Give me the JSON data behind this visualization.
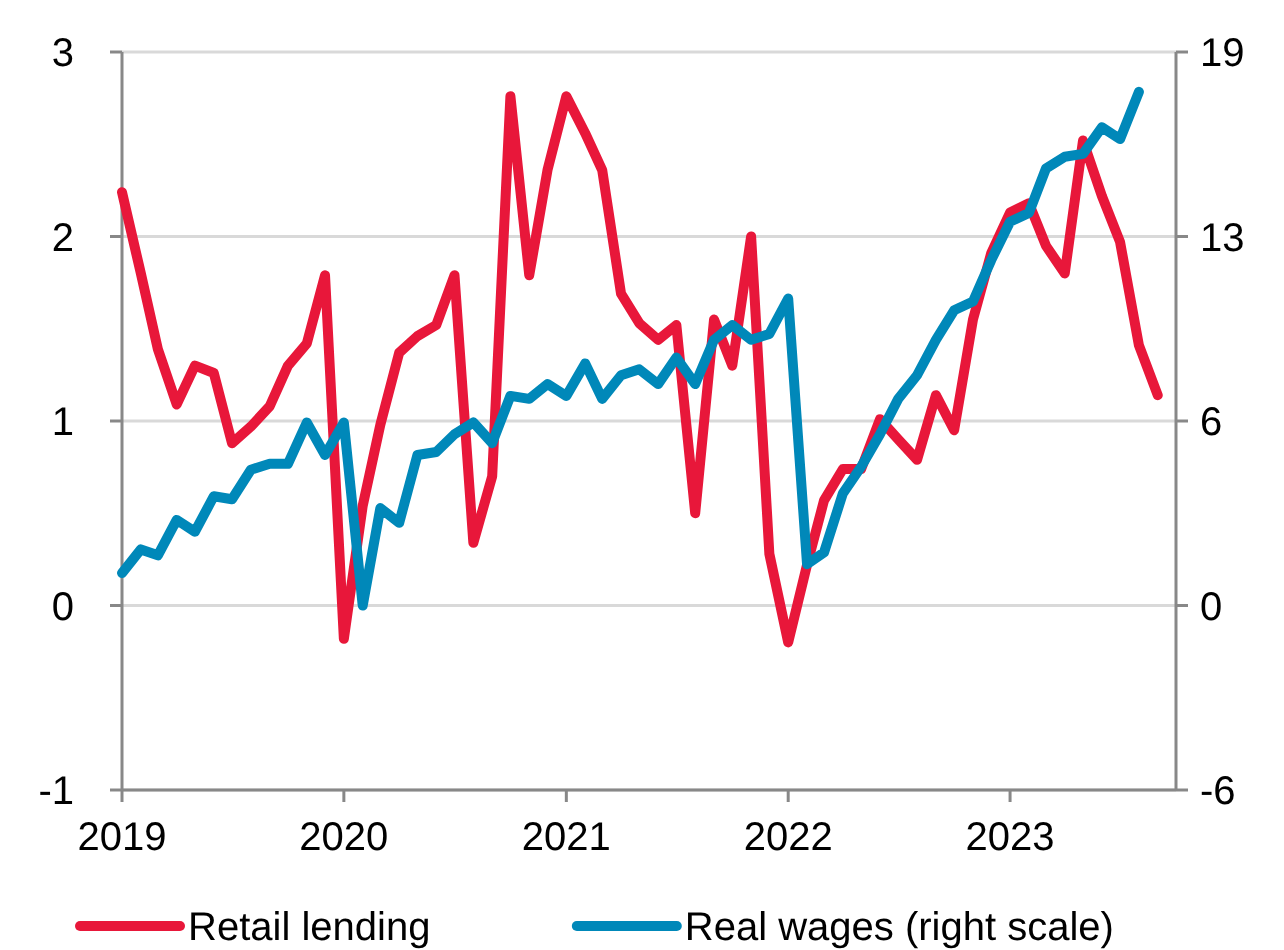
{
  "chart_data": {
    "type": "line",
    "x": [
      "2019-01",
      "2019-02",
      "2019-03",
      "2019-04",
      "2019-05",
      "2019-06",
      "2019-07",
      "2019-08",
      "2019-09",
      "2019-10",
      "2019-11",
      "2019-12",
      "2020-01",
      "2020-02",
      "2020-03",
      "2020-04",
      "2020-05",
      "2020-06",
      "2020-07",
      "2020-08",
      "2020-09",
      "2020-10",
      "2020-11",
      "2020-12",
      "2021-01",
      "2021-02",
      "2021-03",
      "2021-04",
      "2021-05",
      "2021-06",
      "2021-07",
      "2021-08",
      "2021-09",
      "2021-10",
      "2021-11",
      "2021-12",
      "2022-01",
      "2022-02",
      "2022-03",
      "2022-04",
      "2022-05",
      "2022-06",
      "2022-07",
      "2022-08",
      "2022-09",
      "2022-10",
      "2022-11",
      "2022-12",
      "2023-01",
      "2023-02",
      "2023-03",
      "2023-04",
      "2023-05",
      "2023-06",
      "2023-07",
      "2023-08",
      "2023-09"
    ],
    "series": [
      {
        "name": "Retail lending",
        "color": "#e8173a",
        "values": [
          2.24,
          1.8,
          1.39,
          1.09,
          1.3,
          1.26,
          0.88,
          0.97,
          1.08,
          1.3,
          1.42,
          1.79,
          -0.18,
          0.54,
          0.98,
          1.37,
          1.46,
          1.52,
          1.79,
          0.34,
          0.7,
          2.76,
          1.79,
          2.36,
          2.76,
          2.56,
          2.36,
          1.69,
          1.53,
          1.44,
          1.52,
          0.5,
          1.55,
          1.3,
          2.0,
          0.28,
          -0.2,
          0.22,
          0.57,
          0.74,
          0.74,
          1.01,
          0.9,
          0.79,
          1.14,
          0.95,
          1.55,
          1.91,
          2.13,
          2.18,
          1.95,
          1.8,
          2.52,
          2.22,
          1.97,
          1.41,
          1.14
        ]
      },
      {
        "name": "Real wages (right scale)",
        "color": "#0088b9",
        "axis": "y2",
        "values": [
          1.1,
          1.9,
          1.7,
          2.9,
          2.5,
          3.7,
          3.6,
          4.6,
          4.8,
          4.8,
          6.2,
          5.1,
          6.2,
          0.0,
          3.3,
          2.8,
          5.1,
          5.2,
          5.8,
          6.2,
          5.5,
          7.1,
          7.0,
          7.5,
          7.1,
          8.2,
          7.0,
          7.8,
          8.0,
          7.5,
          8.4,
          7.5,
          9.0,
          9.5,
          9.0,
          9.2,
          10.4,
          1.4,
          1.8,
          3.8,
          4.7,
          5.8,
          7.0,
          7.8,
          9.0,
          10.0,
          10.3,
          11.7,
          13.0,
          13.3,
          14.8,
          15.2,
          15.3,
          16.2,
          15.8,
          17.4,
          null
        ]
      }
    ],
    "xlim": [
      "2019-01",
      "2023-10"
    ],
    "xticks": [
      {
        "value": "2019",
        "label": "2019"
      },
      {
        "value": "2020",
        "label": "2020"
      },
      {
        "value": "2021",
        "label": "2021"
      },
      {
        "value": "2022",
        "label": "2022"
      },
      {
        "value": "2023",
        "label": "2023"
      }
    ],
    "ylim": [
      -1,
      3
    ],
    "yticks": [
      -1,
      0,
      1,
      2,
      3
    ],
    "y2lim": [
      -6.25,
      18.75
    ],
    "y2ticks": [
      {
        "value": -6.25,
        "label": "-6"
      },
      {
        "value": 0,
        "label": "0"
      },
      {
        "value": 6.25,
        "label": "6"
      },
      {
        "value": 12.5,
        "label": "13"
      },
      {
        "value": 18.75,
        "label": "19"
      }
    ],
    "grid": "y",
    "legend": "bottom",
    "line_style": "solid",
    "marker": "none"
  }
}
